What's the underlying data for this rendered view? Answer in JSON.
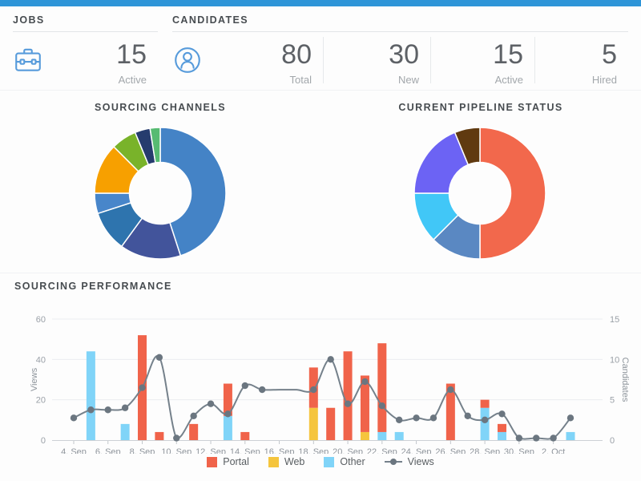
{
  "theme": {
    "accent_blue": "#2E95D8",
    "icon_blue": "#579BDB",
    "title_gray": "#474C50",
    "grid_color": "#ECEDF1",
    "axis_color": "#CDD1D5"
  },
  "header": {
    "jobs": {
      "title": "JOBS",
      "icon": "briefcase-icon",
      "stats": [
        {
          "value": "15",
          "label": "Active"
        }
      ]
    },
    "candidates": {
      "title": "CANDIDATES",
      "icon": "person-icon",
      "stats": [
        {
          "value": "80",
          "label": "Total"
        },
        {
          "value": "30",
          "label": "New"
        },
        {
          "value": "15",
          "label": "Active"
        },
        {
          "value": "5",
          "label": "Hired"
        }
      ]
    }
  },
  "chart_data": [
    {
      "type": "pie",
      "donut": true,
      "title": "SOURCING CHANNELS",
      "start": "top",
      "direction": "clockwise",
      "values": [
        36,
        12,
        8,
        4,
        10,
        5,
        3,
        2
      ],
      "colors": [
        "#4483C6",
        "#42549B",
        "#2E74AE",
        "#4886CA",
        "#F7A000",
        "#79B32A",
        "#263C6E",
        "#57BB72"
      ]
    },
    {
      "type": "pie",
      "donut": true,
      "title": "CURRENT PIPELINE STATUS",
      "start": "top",
      "direction": "clockwise",
      "values": [
        40,
        10,
        10,
        15,
        5
      ],
      "colors": [
        "#F2684C",
        "#5A88C2",
        "#41C7F7",
        "#6C63F4",
        "#603A10"
      ]
    },
    {
      "type": "bar+line",
      "title": "SOURCING PERFORMANCE",
      "stacked_bars": true,
      "x": [
        "4. Sep",
        "5. Sep",
        "6. Sep",
        "7. Sep",
        "8. Sep",
        "9. Sep",
        "10. Sep",
        "11. Sep",
        "12. Sep",
        "13. Sep",
        "14. Sep",
        "15. Sep",
        "16. Sep",
        "17. Sep",
        "18. Sep",
        "19. Sep",
        "20. Sep",
        "21. Sep",
        "22. Sep",
        "23. Sep",
        "24. Sep",
        "25. Sep",
        "26. Sep",
        "27. Sep",
        "28. Sep",
        "29. Sep",
        "30. Sep",
        "1. Oct",
        "2. Oct",
        "3. Oct"
      ],
      "x_tick_labels": [
        "4. Sep",
        "6. Sep",
        "8. Sep",
        "10. Sep",
        "12. Sep",
        "14. Sep",
        "16. Sep",
        "18. Sep",
        "20. Sep",
        "22. Sep",
        "24. Sep",
        "26. Sep",
        "28. Sep",
        "30. Sep",
        "2. Oct"
      ],
      "left_axis": {
        "label": "Views",
        "ticks": [
          0,
          20,
          40,
          60
        ],
        "max": 60
      },
      "right_axis": {
        "label": "Candidates",
        "ticks": [
          0,
          5,
          10,
          15
        ],
        "max": 15
      },
      "bars_axis": "right",
      "legend_position": "bottom",
      "series": [
        {
          "name": "Portal",
          "type": "bar",
          "color": "#F0634A",
          "values": [
            0,
            0,
            0,
            0,
            13,
            1,
            0,
            2,
            0,
            4,
            1,
            0,
            0,
            0,
            5,
            4,
            11,
            7,
            11,
            0,
            0,
            0,
            7,
            0,
            1,
            1,
            0,
            0,
            0,
            0
          ]
        },
        {
          "name": "Web",
          "type": "bar",
          "color": "#F5C53D",
          "values": [
            0,
            0,
            0,
            0,
            0,
            0,
            0,
            0,
            0,
            0,
            0,
            0,
            0,
            0,
            4,
            0,
            0,
            1,
            0,
            0,
            0,
            0,
            0,
            0,
            0,
            0,
            0,
            0,
            0,
            0
          ]
        },
        {
          "name": "Other",
          "type": "bar",
          "color": "#80D4F8",
          "values": [
            0,
            11,
            0,
            2,
            0,
            0,
            0,
            0,
            0,
            3,
            0,
            0,
            0,
            0,
            0,
            0,
            0,
            0,
            1,
            1,
            0,
            0,
            0,
            0,
            4,
            1,
            0,
            0,
            0,
            1
          ]
        },
        {
          "name": "Views",
          "type": "line",
          "axis": "left",
          "color": "#75818B",
          "values": [
            11,
            15,
            15,
            16,
            26,
            41,
            1,
            12,
            18,
            13,
            27,
            25,
            25,
            25,
            25,
            40,
            18,
            29,
            17,
            10,
            11,
            11,
            25,
            12,
            10,
            13,
            1,
            1,
            1,
            11
          ]
        }
      ]
    }
  ]
}
